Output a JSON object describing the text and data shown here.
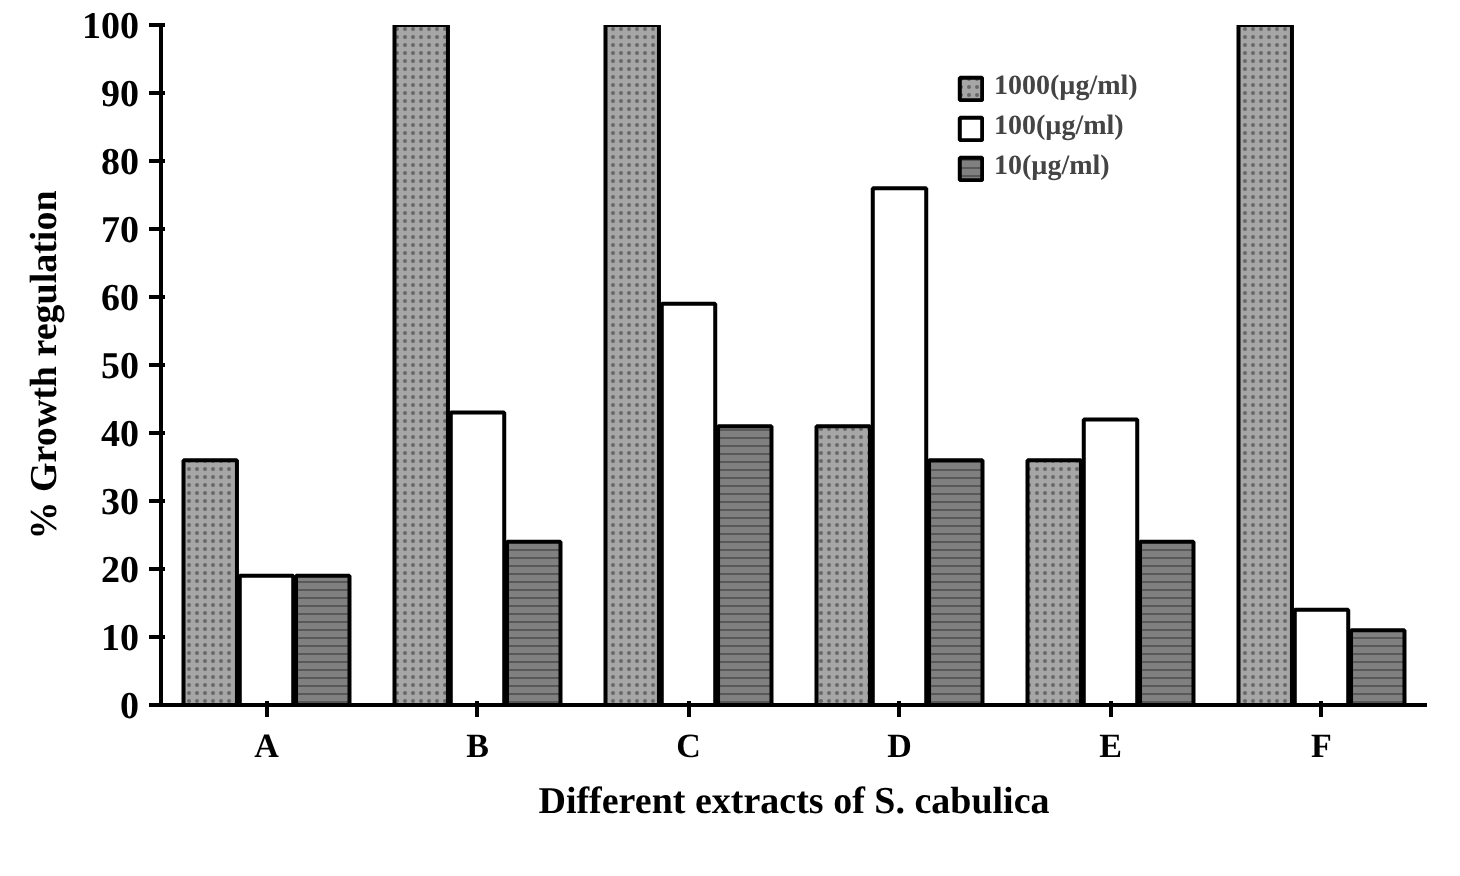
{
  "chart_data": {
    "type": "bar",
    "xlabel": "Different extracts of S. cabulica",
    "ylabel": "% Growth regulation",
    "categories": [
      "A",
      "B",
      "C",
      "D",
      "E",
      "F"
    ],
    "series": [
      {
        "name": "1000(µg/ml)",
        "color": "#a6a6a6",
        "values": [
          36,
          100,
          100,
          41,
          36,
          100
        ]
      },
      {
        "name": "100(µg/ml)",
        "color": "#ffffff",
        "values": [
          19,
          43,
          59,
          76,
          42,
          14
        ]
      },
      {
        "name": "10(µg/ml)",
        "color": "#808080",
        "values": [
          19,
          24,
          41,
          36,
          24,
          11
        ]
      }
    ],
    "ylim": [
      0,
      100
    ],
    "yticks": [
      0,
      10,
      20,
      30,
      40,
      50,
      60,
      70,
      80,
      90,
      100
    ],
    "grid": false,
    "legend": "top right"
  }
}
